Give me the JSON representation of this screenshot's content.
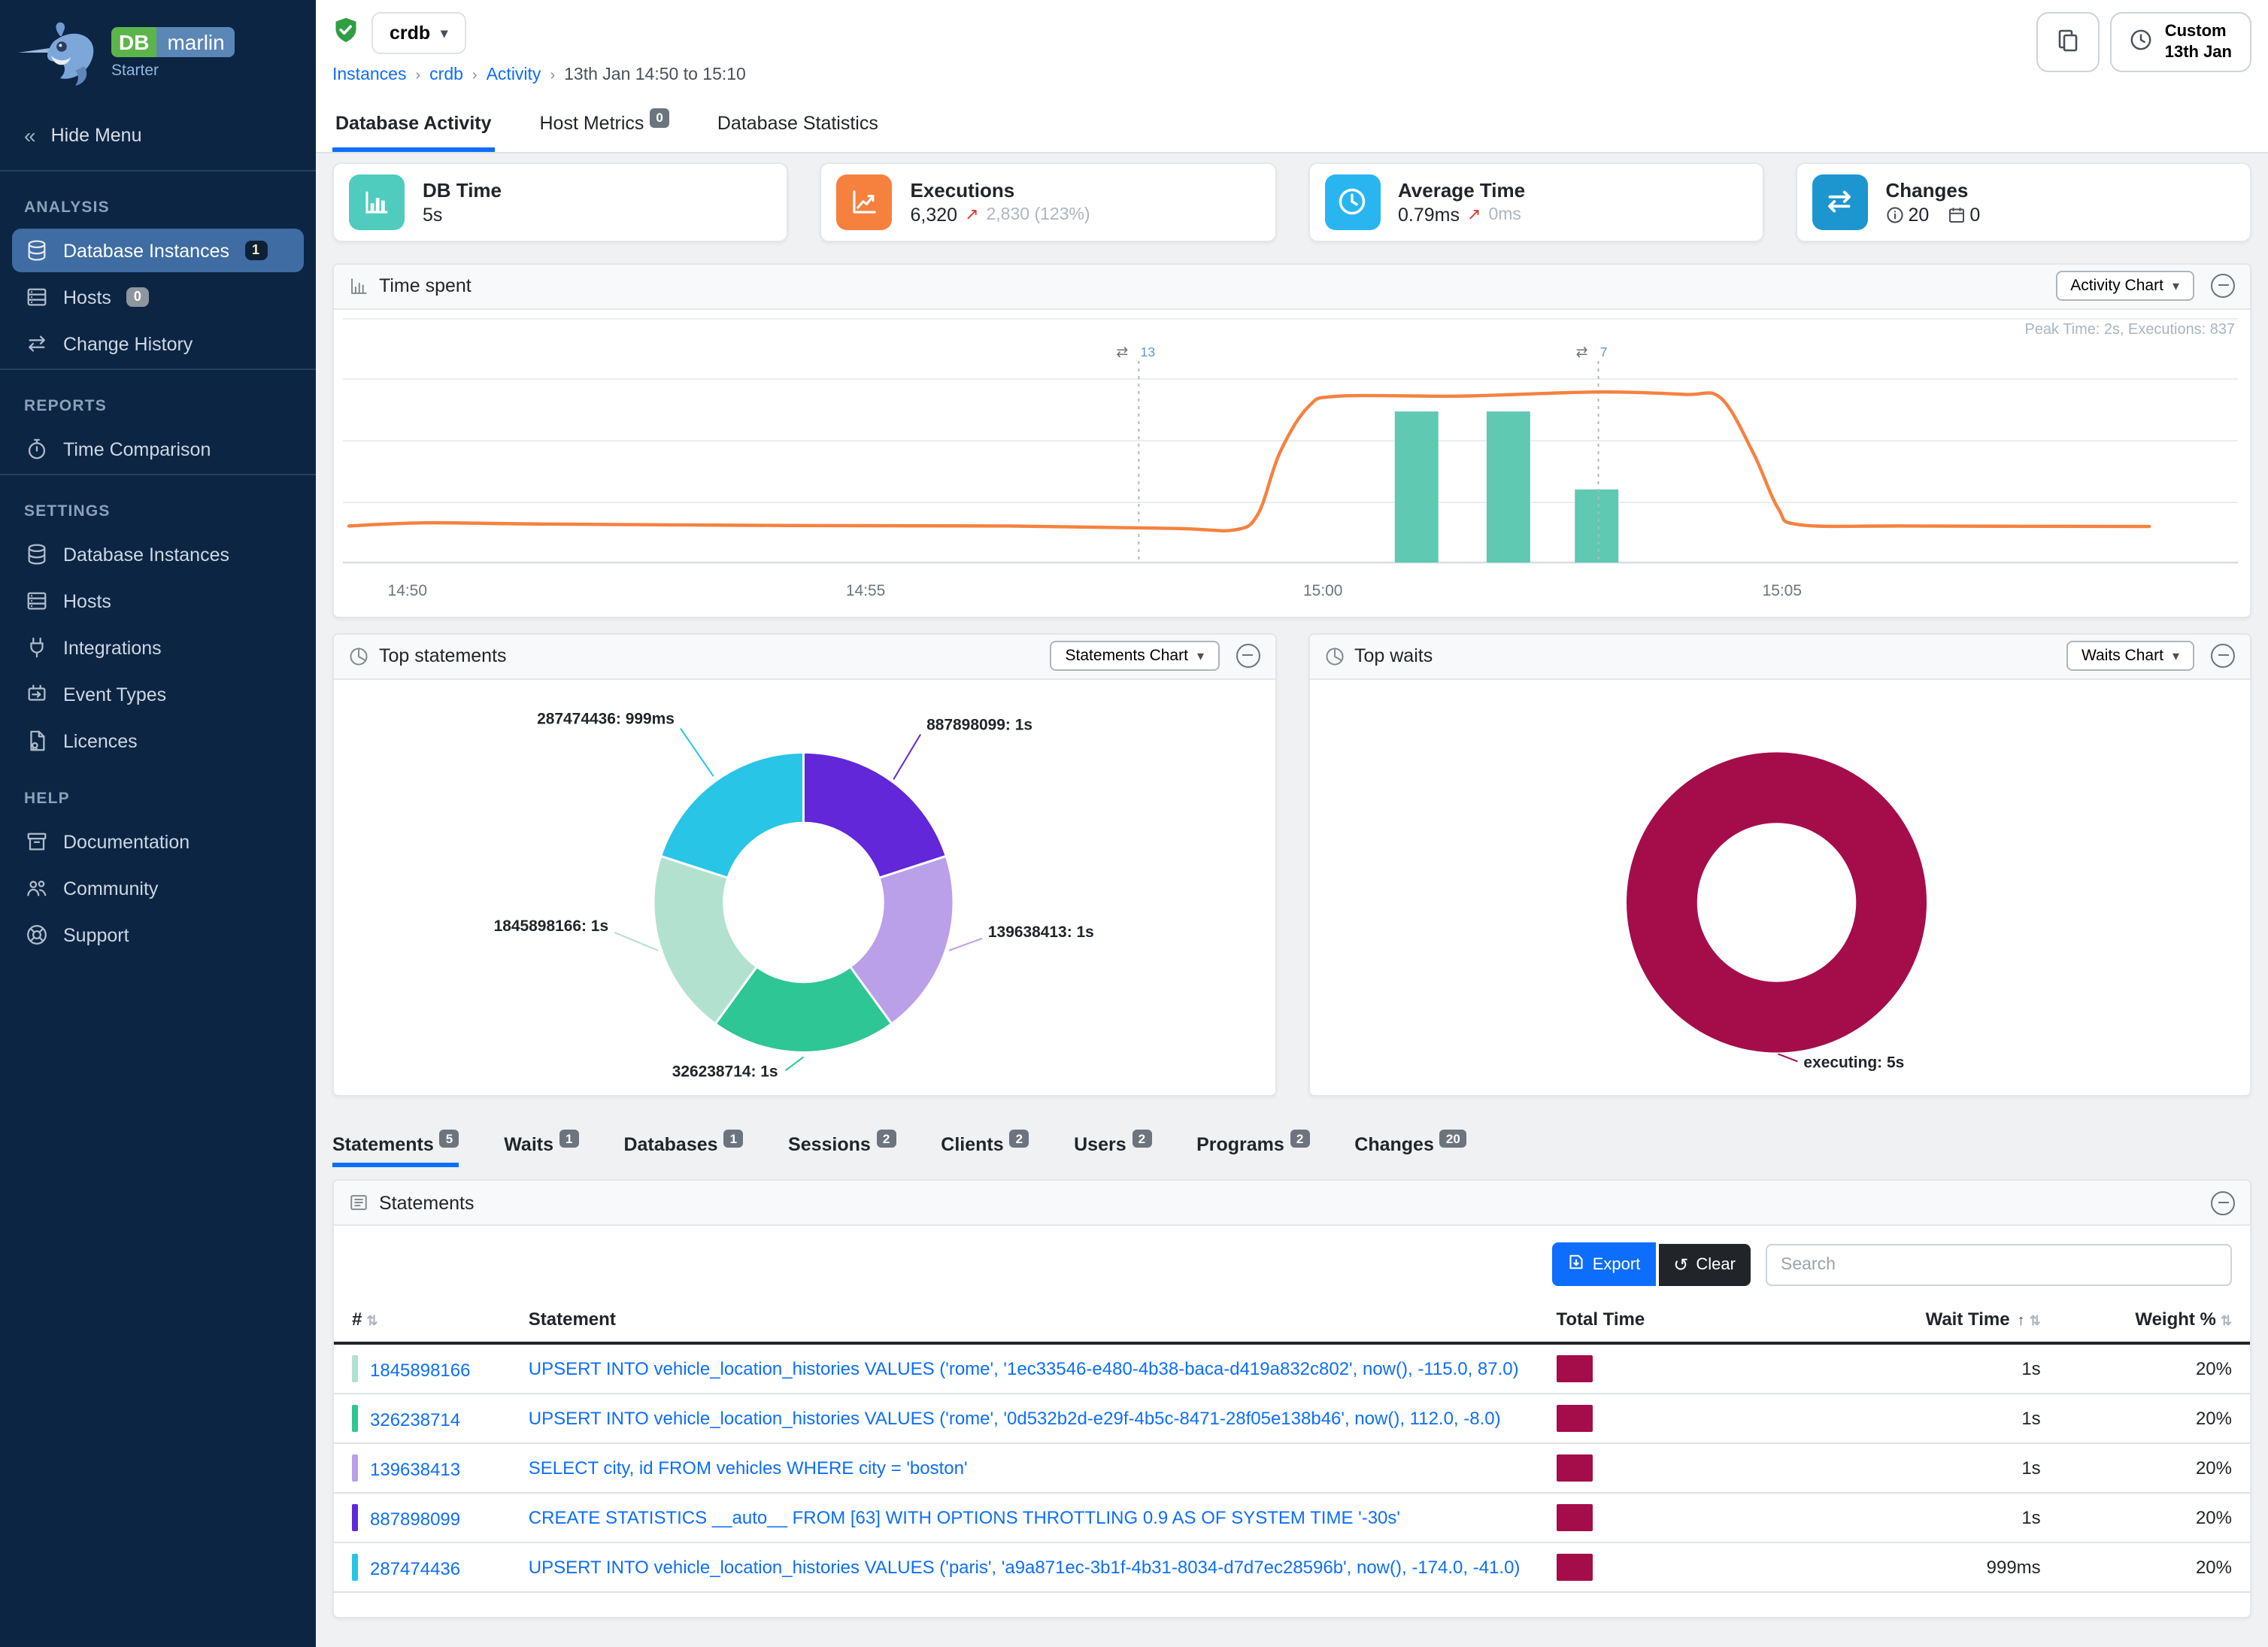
{
  "brand": {
    "db": "DB",
    "marlin": "marlin",
    "edition": "Starter"
  },
  "sidebar": {
    "hide_menu": "Hide Menu",
    "sections": [
      {
        "title": "ANALYSIS",
        "divider_before": true,
        "items": [
          {
            "label": "Database Instances",
            "icon": "database",
            "badge": "1",
            "badge_style": "dark",
            "active": true
          },
          {
            "label": "Hosts",
            "icon": "server",
            "badge": "0",
            "badge_style": "gray"
          },
          {
            "label": "Change History",
            "icon": "swap"
          }
        ]
      },
      {
        "title": "REPORTS",
        "divider_before": true,
        "items": [
          {
            "label": "Time Comparison",
            "icon": "stopwatch"
          }
        ]
      },
      {
        "title": "SETTINGS",
        "divider_before": true,
        "items": [
          {
            "label": "Database Instances",
            "icon": "database"
          },
          {
            "label": "Hosts",
            "icon": "server"
          },
          {
            "label": "Integrations",
            "icon": "plug"
          },
          {
            "label": "Event Types",
            "icon": "event"
          },
          {
            "label": "Licences",
            "icon": "licence"
          }
        ]
      },
      {
        "title": "HELP",
        "divider_before": false,
        "items": [
          {
            "label": "Documentation",
            "icon": "box"
          },
          {
            "label": "Community",
            "icon": "people"
          },
          {
            "label": "Support",
            "icon": "lifebuoy"
          }
        ]
      }
    ]
  },
  "topbar": {
    "instance": "crdb",
    "breadcrumb": [
      "Instances",
      "crdb",
      "Activity",
      "13th Jan 14:50 to 15:10"
    ],
    "range_button": {
      "line1": "Custom",
      "line2": "13th Jan"
    }
  },
  "main_tabs": [
    {
      "label": "Database Activity",
      "active": true
    },
    {
      "label": "Host Metrics",
      "badge": "0"
    },
    {
      "label": "Database Statistics"
    }
  ],
  "kpis": [
    {
      "title": "DB Time",
      "value": "5s",
      "icon": "bars",
      "color": "#4fccbe"
    },
    {
      "title": "Executions",
      "value": "6,320",
      "delta": "2,830 (123%)",
      "icon": "trend",
      "color": "#f6813f"
    },
    {
      "title": "Average Time",
      "value": "0.79ms",
      "delta": "0ms",
      "icon": "clock",
      "color": "#29b5f0"
    },
    {
      "title": "Changes",
      "icon": "swap",
      "color": "#1d96cf",
      "info_value": "20",
      "calendar_value": "0"
    }
  ],
  "time_spent": {
    "title": "Time spent",
    "chart_button": "Activity Chart",
    "peak_note": "Peak Time: 2s, Executions: 837"
  },
  "top_statements": {
    "title": "Top statements",
    "chart_button": "Statements Chart"
  },
  "top_waits": {
    "title": "Top waits",
    "chart_button": "Waits Chart"
  },
  "detail_tabs": [
    {
      "label": "Statements",
      "badge": "5",
      "active": true
    },
    {
      "label": "Waits",
      "badge": "1"
    },
    {
      "label": "Databases",
      "badge": "1"
    },
    {
      "label": "Sessions",
      "badge": "2"
    },
    {
      "label": "Clients",
      "badge": "2"
    },
    {
      "label": "Users",
      "badge": "2"
    },
    {
      "label": "Programs",
      "badge": "2"
    },
    {
      "label": "Changes",
      "badge": "20"
    }
  ],
  "statements_panel": {
    "title": "Statements",
    "export_label": "Export",
    "clear_label": "Clear",
    "search_placeholder": "Search",
    "columns": {
      "num": "#",
      "statement": "Statement",
      "total_time": "Total Time",
      "wait_time": "Wait Time",
      "weight": "Weight %"
    },
    "total_time_bar_color": "#a50d4a",
    "rows": [
      {
        "id": "1845898166",
        "color": "#b2e2cf",
        "statement": "UPSERT INTO vehicle_location_histories VALUES ('rome', '1ec33546-e480-4b38-baca-d419a832c802', now(), -115.0, 87.0)",
        "wait_time": "1s",
        "weight": "20%"
      },
      {
        "id": "326238714",
        "color": "#2ec694",
        "statement": "UPSERT INTO vehicle_location_histories VALUES ('rome', '0d532b2d-e29f-4b5c-8471-28f05e138b46', now(), 112.0, -8.0)",
        "wait_time": "1s",
        "weight": "20%"
      },
      {
        "id": "139638413",
        "color": "#b9a0e8",
        "statement": "SELECT city, id FROM vehicles WHERE city = 'boston'",
        "wait_time": "1s",
        "weight": "20%"
      },
      {
        "id": "887898099",
        "color": "#6127d8",
        "statement": "CREATE STATISTICS __auto__ FROM [63] WITH OPTIONS THROTTLING 0.9 AS OF SYSTEM TIME '-30s'",
        "wait_time": "1s",
        "weight": "20%"
      },
      {
        "id": "287474436",
        "color": "#29c5e6",
        "statement": "UPSERT INTO vehicle_location_histories VALUES ('paris', 'a9a871ec-3b1f-4b31-8034-d7d7ec28596b', now(), -174.0, -41.0)",
        "wait_time": "999ms",
        "weight": "20%"
      }
    ]
  },
  "chart_data": [
    {
      "type": "line+bar",
      "title": "Time spent",
      "peak_note": "Peak Time: 2s, Executions: 837",
      "x_ticks": [
        {
          "label": "14:50",
          "f": 0.0325
        },
        {
          "label": "14:55",
          "f": 0.287
        },
        {
          "label": "15:00",
          "f": 0.541
        },
        {
          "label": "15:05",
          "f": 0.796
        }
      ],
      "line_series": {
        "name": "time-spent-line",
        "color": "#f6813f",
        "points": [
          [
            0,
            0.15
          ],
          [
            0.042,
            0.163
          ],
          [
            0.108,
            0.158
          ],
          [
            0.242,
            0.152
          ],
          [
            0.367,
            0.15
          ],
          [
            0.459,
            0.14
          ],
          [
            0.492,
            0.134
          ],
          [
            0.505,
            0.2
          ],
          [
            0.517,
            0.45
          ],
          [
            0.533,
            0.64
          ],
          [
            0.55,
            0.683
          ],
          [
            0.617,
            0.683
          ],
          [
            0.694,
            0.7
          ],
          [
            0.742,
            0.69
          ],
          [
            0.762,
            0.675
          ],
          [
            0.78,
            0.45
          ],
          [
            0.794,
            0.22
          ],
          [
            0.806,
            0.155
          ],
          [
            0.867,
            0.15
          ],
          [
            1,
            0.148
          ]
        ]
      },
      "bar_series": {
        "name": "executions-bars",
        "color": "#5fc9b2",
        "bars": [
          [
            0.593,
            0.62
          ],
          [
            0.644,
            0.62
          ],
          [
            0.693,
            0.3
          ]
        ]
      },
      "annotations": [
        {
          "f": 0.4387,
          "label": "13",
          "icon": "swap"
        },
        {
          "f": 0.694,
          "label": "7",
          "icon": "swap"
        }
      ],
      "grid": true
    },
    {
      "type": "pie",
      "title": "Top statements",
      "slices": [
        {
          "label": "887898099",
          "value_label": "1s",
          "value": 1,
          "color": "#6127d8"
        },
        {
          "label": "139638413",
          "value_label": "1s",
          "value": 1,
          "color": "#b9a0e8"
        },
        {
          "label": "326238714",
          "value_label": "1s",
          "value": 1,
          "color": "#2ec694"
        },
        {
          "label": "1845898166",
          "value_label": "1s",
          "value": 1,
          "color": "#b2e2cf"
        },
        {
          "label": "287474436",
          "value_label": "999ms",
          "value": 0.999,
          "color": "#29c5e6"
        }
      ]
    },
    {
      "type": "pie",
      "title": "Top waits",
      "slices": [
        {
          "label": "executing",
          "value_label": "5s",
          "value": 5,
          "color": "#a50d4a"
        }
      ]
    }
  ]
}
